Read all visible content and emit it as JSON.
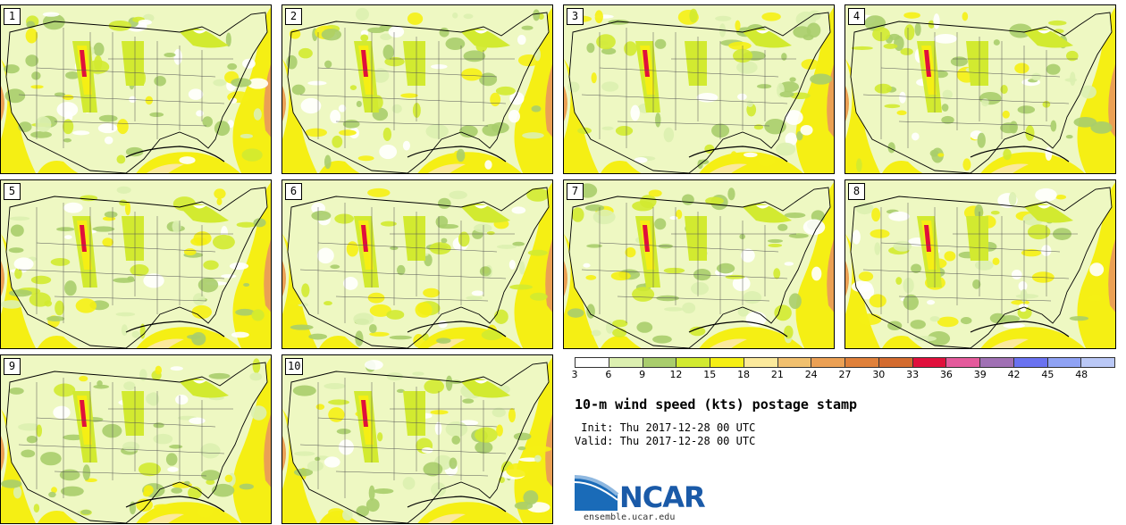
{
  "panels": [
    "1",
    "2",
    "3",
    "4",
    "5",
    "6",
    "7",
    "8",
    "9",
    "10"
  ],
  "colorbar": {
    "colors": [
      "#ffffff",
      "#dcefb0",
      "#a9cd6c",
      "#d2ea30",
      "#f5ef14",
      "#fbe99c",
      "#f1c06e",
      "#eba054",
      "#df803a",
      "#d36b2f",
      "#e0103c",
      "#e45a9c",
      "#a070b4",
      "#6a72f0",
      "#8fa2f4",
      "#bac8f6"
    ],
    "labels": [
      "3",
      "6",
      "9",
      "12",
      "15",
      "18",
      "21",
      "24",
      "27",
      "30",
      "33",
      "36",
      "39",
      "42",
      "45",
      "48"
    ]
  },
  "title": "10-m wind speed (kts) postage stamp",
  "init_text": " Init: Thu 2017-12-28 00 UTC",
  "valid_text": "Valid: Thu 2017-12-28 00 UTC",
  "logo": {
    "name": "NCAR",
    "color": "#1a5aa8"
  },
  "site": "ensemble.ucar.edu"
}
